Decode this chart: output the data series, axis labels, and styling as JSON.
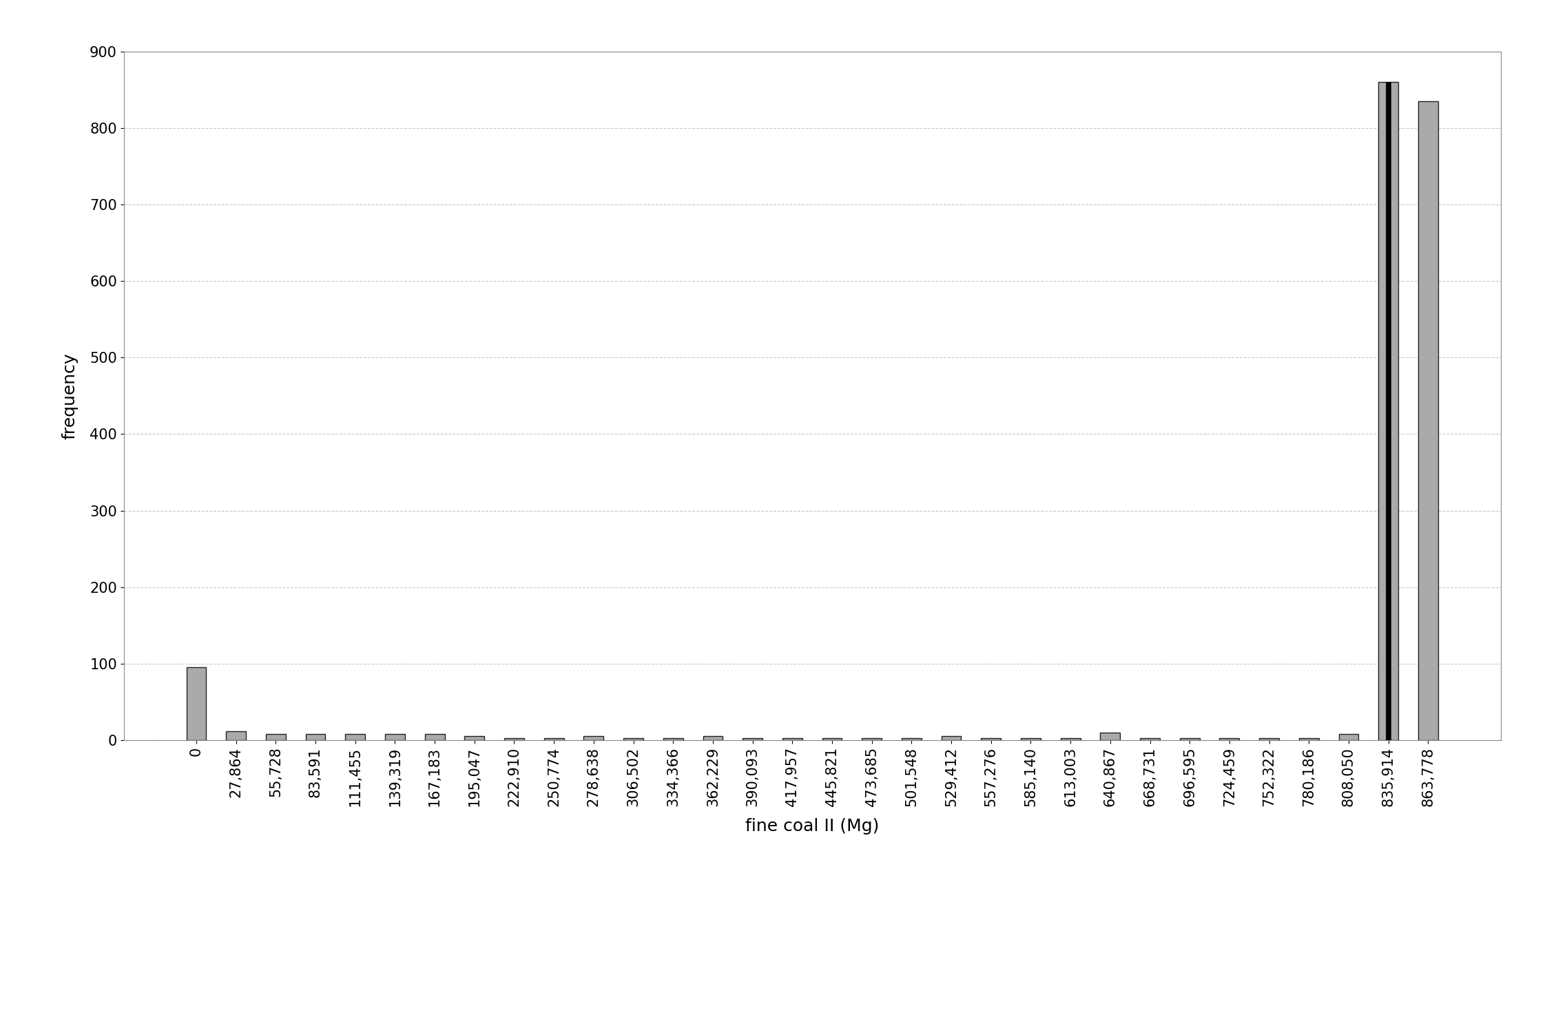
{
  "categories": [
    "0",
    "27,864",
    "55,728",
    "83,591",
    "111,455",
    "139,319",
    "167,183",
    "195,047",
    "222,910",
    "250,774",
    "278,638",
    "306,502",
    "334,366",
    "362,229",
    "390,093",
    "417,957",
    "445,821",
    "473,685",
    "501,548",
    "529,412",
    "557,276",
    "585,140",
    "613,003",
    "640,867",
    "668,731",
    "696,595",
    "724,459",
    "752,322",
    "780,186",
    "808,050",
    "835,914",
    "863,778"
  ],
  "bar1_values": [
    95,
    12,
    8,
    8,
    8,
    8,
    8,
    5,
    3,
    3,
    5,
    3,
    3,
    5,
    3,
    3,
    3,
    3,
    3,
    5,
    3,
    3,
    3,
    10,
    3,
    3,
    3,
    3,
    3,
    8,
    860,
    0
  ],
  "bar2_values": [
    0,
    0,
    0,
    0,
    0,
    0,
    0,
    0,
    0,
    0,
    0,
    0,
    0,
    0,
    0,
    0,
    0,
    0,
    0,
    0,
    0,
    0,
    0,
    0,
    0,
    0,
    0,
    0,
    0,
    0,
    0,
    835
  ],
  "bar1_color": "#aaaaaa",
  "bar1_edge_color": "#222222",
  "bar2_color": "#aaaaaa",
  "bar2_edge_color": "#222222",
  "black_bar_color": "#000000",
  "xlabel": "fine coal II (Mg)",
  "ylabel": "frequency",
  "ylim": [
    0,
    900
  ],
  "yticks": [
    0,
    100,
    200,
    300,
    400,
    500,
    600,
    700,
    800,
    900
  ],
  "background_color": "#ffffff",
  "grid_color": "#c8c8c8",
  "figsize": [
    22.46,
    14.93
  ],
  "dpi": 100,
  "xlabel_fontsize": 18,
  "ylabel_fontsize": 18,
  "tick_fontsize": 15,
  "border_color": "#888888"
}
